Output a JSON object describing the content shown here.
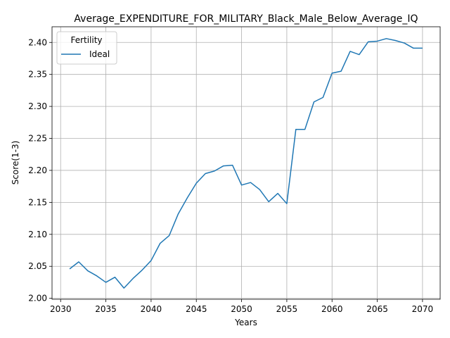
{
  "chart_data": {
    "type": "line",
    "title": "Average_EXPENDITURE_FOR_MILITARY_Black_Male_Below_Average_IQ",
    "xlabel": "Years",
    "ylabel": "Score(1-3)",
    "xlim": [
      2029.05,
      2071.95
    ],
    "ylim": [
      1.9985,
      2.4245
    ],
    "xticks": [
      2030,
      2035,
      2040,
      2045,
      2050,
      2055,
      2060,
      2065,
      2070
    ],
    "xtick_labels": [
      "2030",
      "2035",
      "2040",
      "2045",
      "2050",
      "2055",
      "2060",
      "2065",
      "2070"
    ],
    "yticks": [
      2.0,
      2.05,
      2.1,
      2.15,
      2.2,
      2.25,
      2.3,
      2.35,
      2.4
    ],
    "ytick_labels": [
      "2.00",
      "2.05",
      "2.10",
      "2.15",
      "2.20",
      "2.25",
      "2.30",
      "2.35",
      "2.40"
    ],
    "grid": true,
    "legend": {
      "title": "Fertility",
      "placement": "top-left"
    },
    "x": [
      2031,
      2032,
      2033,
      2034,
      2035,
      2036,
      2037,
      2038,
      2039,
      2040,
      2041,
      2042,
      2043,
      2044,
      2045,
      2046,
      2047,
      2048,
      2049,
      2050,
      2051,
      2052,
      2053,
      2054,
      2055,
      2056,
      2057,
      2058,
      2059,
      2060,
      2061,
      2062,
      2063,
      2064,
      2065,
      2066,
      2067,
      2068,
      2069,
      2070
    ],
    "series": [
      {
        "name": "Ideal",
        "color": "#1f77b4",
        "values": [
          2.046,
          2.057,
          2.043,
          2.035,
          2.025,
          2.033,
          2.016,
          2.031,
          2.044,
          2.059,
          2.086,
          2.098,
          2.132,
          2.157,
          2.18,
          2.195,
          2.199,
          2.207,
          2.208,
          2.177,
          2.181,
          2.17,
          2.151,
          2.164,
          2.148,
          2.264,
          2.264,
          2.307,
          2.314,
          2.352,
          2.355,
          2.386,
          2.381,
          2.401,
          2.402,
          2.406,
          2.403,
          2.399,
          2.391,
          2.391
        ]
      }
    ]
  }
}
